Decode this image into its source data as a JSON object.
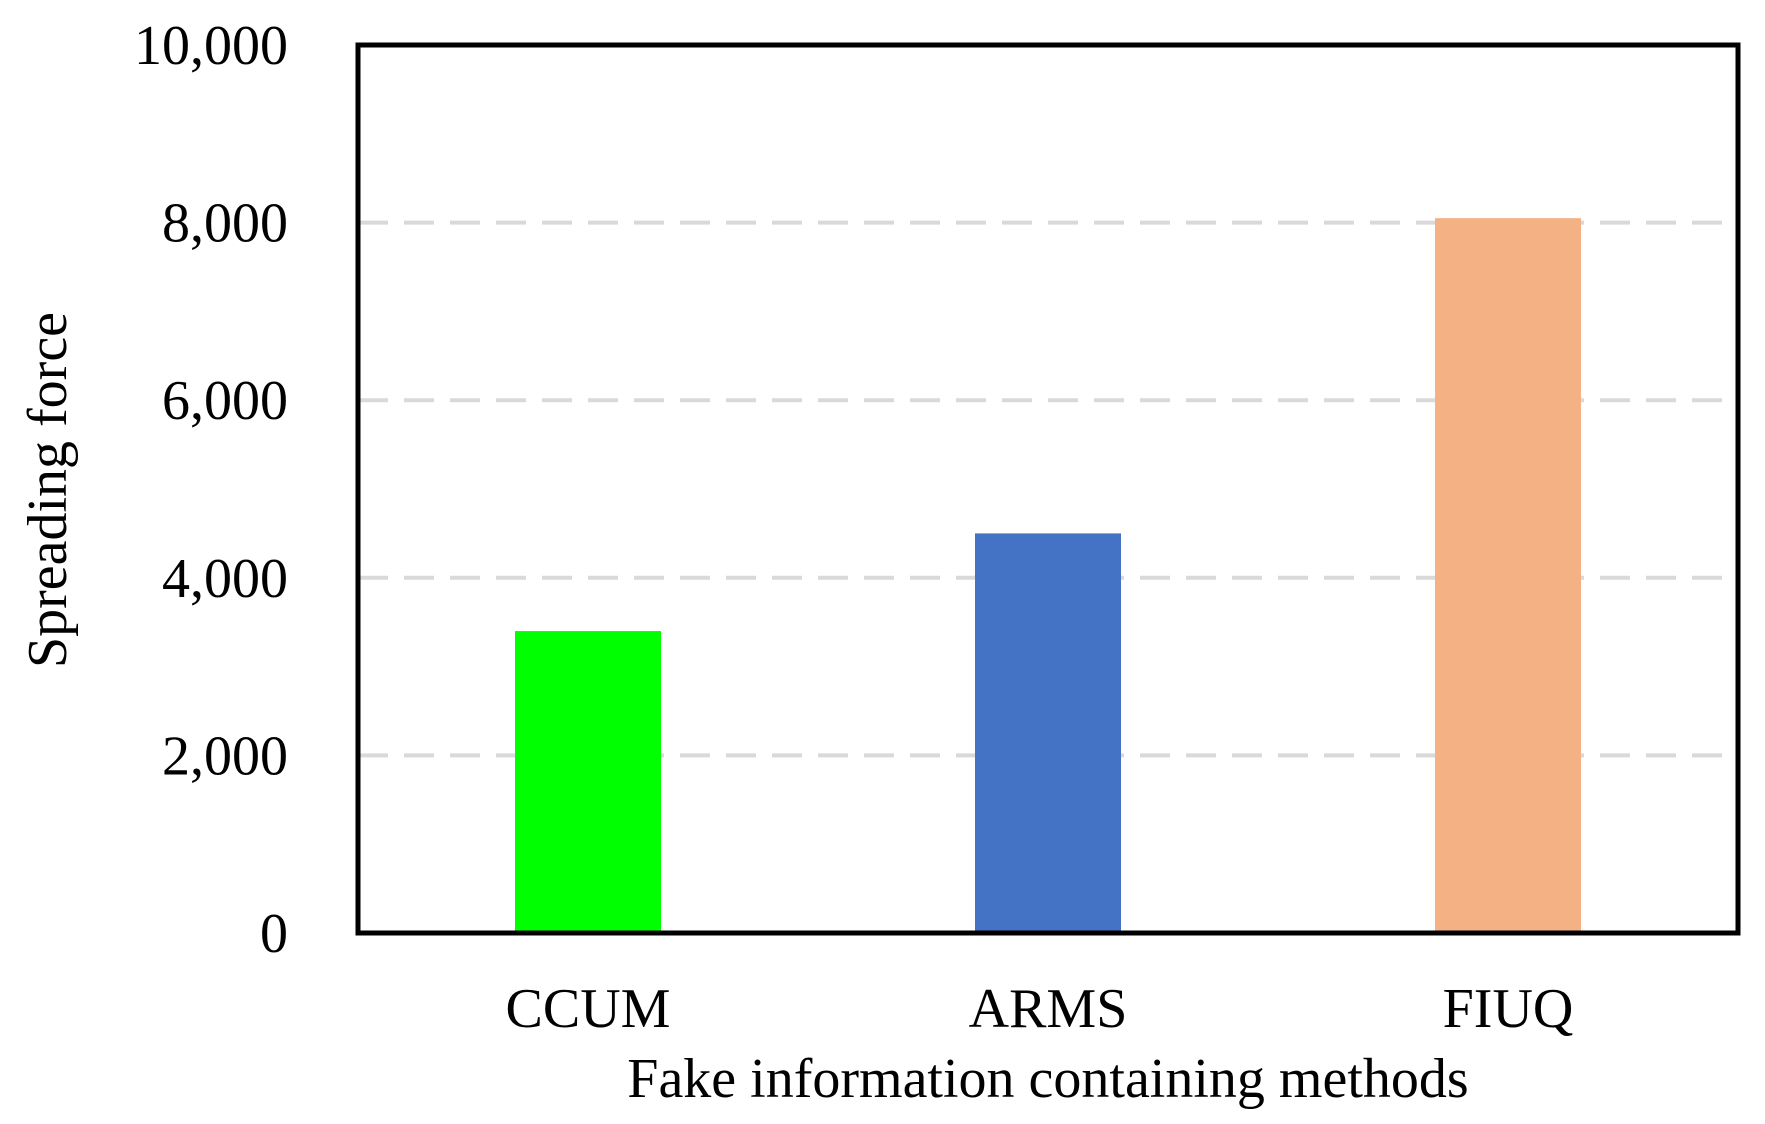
{
  "chart_data": {
    "type": "bar",
    "title": "",
    "xlabel": "Fake information containing methods",
    "ylabel": "Spreading force",
    "categories": [
      "CCUM",
      "ARMS",
      "FIUQ"
    ],
    "values": [
      3400,
      4500,
      8050
    ],
    "colors": [
      "#00ff00",
      "#4472c4",
      "#f4b183"
    ],
    "ylim": [
      0,
      10000
    ],
    "yticks": [
      0,
      2000,
      4000,
      6000,
      8000,
      10000
    ],
    "ytick_labels": [
      "0",
      "2,000",
      "4,000",
      "6,000",
      "8,000",
      "10,000"
    ],
    "grid": "horizontal dashed",
    "grid_color": "#d9d9d9",
    "legend": "none"
  }
}
